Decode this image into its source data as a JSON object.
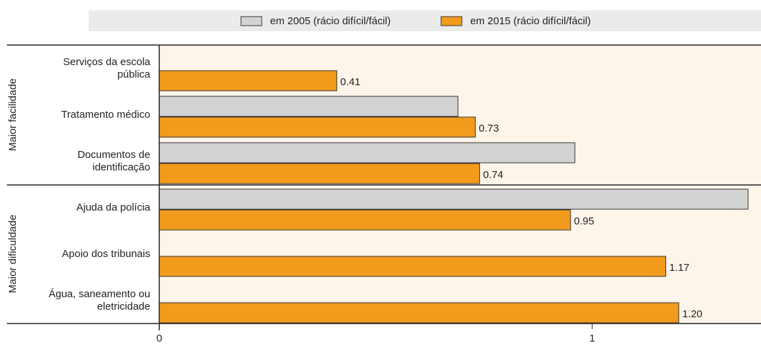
{
  "chart_data": {
    "type": "bar",
    "orientation": "horizontal",
    "categories": [
      "Serviços da escola\npública",
      "Tratamento médico",
      "Documentos de\nidentificação",
      "Ajuda da polícia",
      "Apoio dos tribunais",
      "Água, saneamento ou\neletricidade"
    ],
    "group_labels": [
      "Maior facilidade",
      "Maior dificuldade"
    ],
    "series": [
      {
        "name": "em 2005 (rácio difícil/fácil)",
        "color": "#d3d3d3",
        "values": [
          null,
          0.69,
          0.96,
          1.36,
          null,
          null
        ]
      },
      {
        "name": "em 2015 (rácio difícil/fácil)",
        "color": "#f39b1c",
        "values": [
          0.41,
          0.73,
          0.74,
          0.95,
          1.17,
          1.2
        ],
        "value_labels": [
          "0.41",
          "0.73",
          "0.74",
          "0.95",
          "1.17",
          "1.20"
        ]
      }
    ],
    "xlim": [
      0,
      1.39
    ],
    "xticks": [
      0,
      1
    ]
  }
}
